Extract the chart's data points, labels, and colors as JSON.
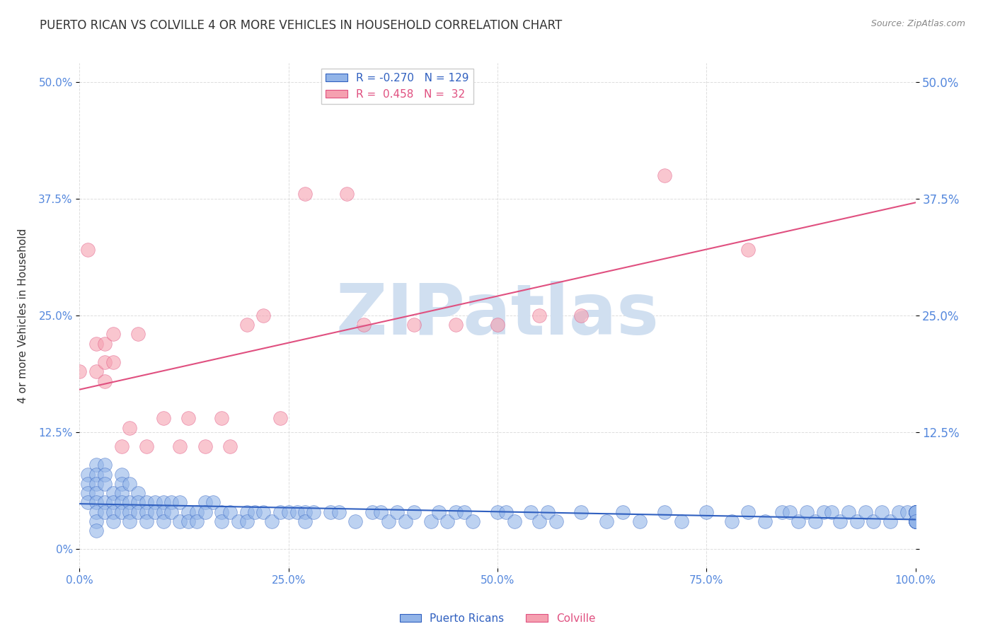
{
  "title": "PUERTO RICAN VS COLVILLE 4 OR MORE VEHICLES IN HOUSEHOLD CORRELATION CHART",
  "source": "Source: ZipAtlas.com",
  "xlabel": "",
  "ylabel": "4 or more Vehicles in Household",
  "xlim": [
    0,
    100
  ],
  "ylim": [
    -2,
    52
  ],
  "yticks": [
    0,
    12.5,
    25.0,
    37.5,
    50.0
  ],
  "ytick_labels": [
    "0%",
    "12.5%",
    "25.0%",
    "37.5%",
    "50.0%"
  ],
  "xticks": [
    0,
    25,
    50,
    75,
    100
  ],
  "xtick_labels": [
    "0.0%",
    "25.0%",
    "50.0%",
    "75.0%",
    "100.0%"
  ],
  "blue_R": -0.27,
  "blue_N": 129,
  "pink_R": 0.458,
  "pink_N": 32,
  "blue_color": "#92b4e8",
  "pink_color": "#f5a0b0",
  "blue_line_color": "#3060c0",
  "pink_line_color": "#e05080",
  "background_color": "#ffffff",
  "watermark": "ZIPatlas",
  "watermark_color": "#d0dff0",
  "title_fontsize": 12,
  "legend_fontsize": 11,
  "axis_label_color": "#5588dd",
  "tick_label_color": "#5588dd",
  "grid_color": "#dddddd",
  "blue_scatter_x": [
    1,
    1,
    1,
    1,
    2,
    2,
    2,
    2,
    2,
    2,
    2,
    2,
    3,
    3,
    3,
    3,
    3,
    4,
    4,
    4,
    4,
    5,
    5,
    5,
    5,
    5,
    6,
    6,
    6,
    6,
    7,
    7,
    7,
    8,
    8,
    8,
    9,
    9,
    10,
    10,
    10,
    11,
    11,
    12,
    12,
    13,
    13,
    14,
    14,
    15,
    15,
    16,
    17,
    17,
    18,
    19,
    20,
    20,
    21,
    22,
    23,
    24,
    25,
    26,
    27,
    27,
    28,
    30,
    31,
    33,
    35,
    36,
    37,
    38,
    39,
    40,
    42,
    43,
    44,
    45,
    46,
    47,
    50,
    51,
    52,
    54,
    55,
    56,
    57,
    60,
    63,
    65,
    67,
    70,
    72,
    75,
    78,
    80,
    82,
    84,
    85,
    86,
    87,
    88,
    89,
    90,
    91,
    92,
    93,
    94,
    95,
    96,
    97,
    98,
    99,
    100,
    100,
    100,
    100,
    100,
    100,
    100,
    100,
    100,
    100,
    100,
    100,
    100,
    100
  ],
  "blue_scatter_y": [
    8,
    7,
    6,
    5,
    9,
    8,
    7,
    6,
    5,
    4,
    3,
    2,
    9,
    8,
    7,
    5,
    4,
    6,
    5,
    4,
    3,
    8,
    7,
    6,
    5,
    4,
    7,
    5,
    4,
    3,
    6,
    5,
    4,
    5,
    4,
    3,
    5,
    4,
    5,
    4,
    3,
    5,
    4,
    5,
    3,
    4,
    3,
    4,
    3,
    5,
    4,
    5,
    4,
    3,
    4,
    3,
    4,
    3,
    4,
    4,
    3,
    4,
    4,
    4,
    4,
    3,
    4,
    4,
    4,
    3,
    4,
    4,
    3,
    4,
    3,
    4,
    3,
    4,
    3,
    4,
    4,
    3,
    4,
    4,
    3,
    4,
    3,
    4,
    3,
    4,
    3,
    4,
    3,
    4,
    3,
    4,
    3,
    4,
    3,
    4,
    4,
    3,
    4,
    3,
    4,
    4,
    3,
    4,
    3,
    4,
    3,
    4,
    3,
    4,
    4,
    3,
    4,
    3,
    4,
    3,
    4,
    3,
    4,
    3,
    4,
    3,
    4,
    4,
    3
  ],
  "pink_scatter_x": [
    0,
    1,
    2,
    2,
    3,
    3,
    3,
    4,
    4,
    5,
    6,
    7,
    8,
    10,
    12,
    13,
    15,
    17,
    18,
    20,
    22,
    24,
    27,
    32,
    34,
    40,
    45,
    50,
    55,
    60,
    70,
    80
  ],
  "pink_scatter_y": [
    19,
    32,
    22,
    19,
    22,
    20,
    18,
    23,
    20,
    11,
    13,
    23,
    11,
    14,
    11,
    14,
    11,
    14,
    11,
    24,
    25,
    14,
    38,
    38,
    24,
    24,
    24,
    24,
    25,
    25,
    40,
    32
  ]
}
